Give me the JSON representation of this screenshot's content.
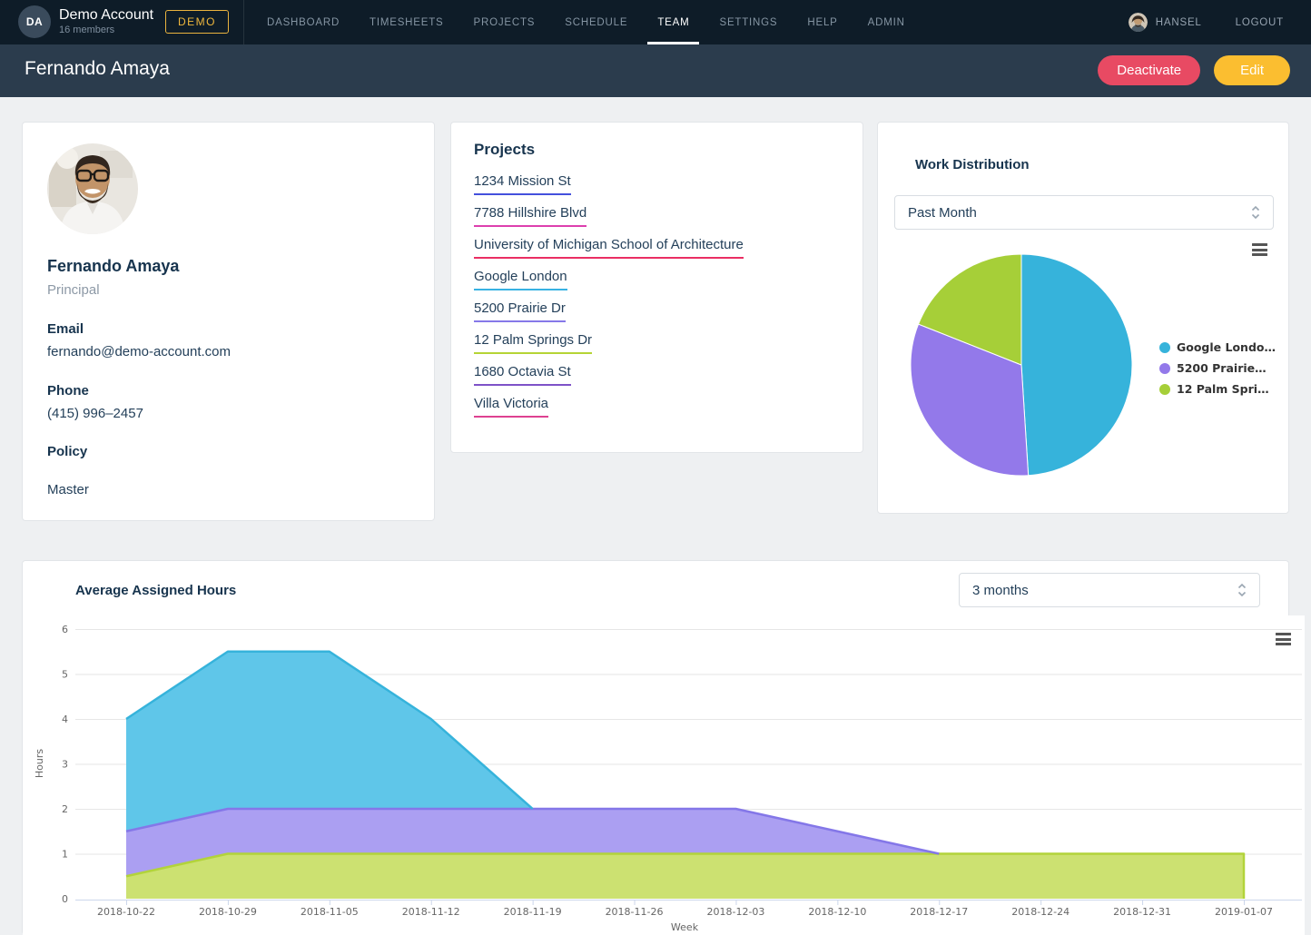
{
  "nav": {
    "account_initials": "DA",
    "account_name": "Demo Account",
    "account_members": "16 members",
    "badge": "DEMO",
    "items": [
      {
        "label": "DASHBOARD",
        "active": false
      },
      {
        "label": "TIMESHEETS",
        "active": false
      },
      {
        "label": "PROJECTS",
        "active": false
      },
      {
        "label": "SCHEDULE",
        "active": false
      },
      {
        "label": "TEAM",
        "active": true
      },
      {
        "label": "SETTINGS",
        "active": false
      },
      {
        "label": "HELP",
        "active": false
      },
      {
        "label": "ADMIN",
        "active": false
      }
    ],
    "user_name": "HANSEL",
    "logout_label": "LOGOUT"
  },
  "header": {
    "title": "Fernando Amaya",
    "deactivate_label": "Deactivate",
    "edit_label": "Edit"
  },
  "profile": {
    "name": "Fernando Amaya",
    "role": "Principal",
    "email_label": "Email",
    "email": "fernando@demo-account.com",
    "phone_label": "Phone",
    "phone": "(415) 996–2457",
    "policy_label": "Policy",
    "policy": "Master"
  },
  "projects": {
    "title": "Projects",
    "items": [
      {
        "label": "1234 Mission St",
        "underline_color": "#4450dd"
      },
      {
        "label": "7788 Hillshire Blvd",
        "underline_color": "#dd3fae"
      },
      {
        "label": "University of Michigan School of Architecture",
        "underline_color": "#ea2e63"
      },
      {
        "label": "Google London",
        "underline_color": "#38b2e3"
      },
      {
        "label": "5200 Prairie Dr",
        "underline_color": "#8678e9"
      },
      {
        "label": "12 Palm Springs Dr",
        "underline_color": "#b5d435"
      },
      {
        "label": "1680 Octavia St",
        "underline_color": "#7e52c8"
      },
      {
        "label": "Villa Victoria",
        "underline_color": "#de4191"
      }
    ]
  },
  "work_distribution": {
    "title": "Work Distribution",
    "period": "Past Month"
  },
  "assigned_hours": {
    "title": "Average Assigned Hours",
    "period": "3 months"
  },
  "icons": {
    "chart_menu": "hamburger-menu-icon",
    "select_chevron": "updown-chevron-icon"
  },
  "chart_data": [
    {
      "type": "pie",
      "title": "Work Distribution",
      "period": "Past Month",
      "legend_position": "right",
      "unit": "percent",
      "slices": [
        {
          "label": "Google Londo…",
          "value": 49,
          "color": "#36b3db"
        },
        {
          "label": "5200 Prairie…",
          "value": 32,
          "color": "#9379ea"
        },
        {
          "label": "12 Palm Spri…",
          "value": 19,
          "color": "#a6cf38"
        }
      ]
    },
    {
      "type": "area",
      "stacked": true,
      "title": "Average Assigned Hours",
      "period": "3 months",
      "xlabel": "Week",
      "ylabel": "Hours",
      "ylim": [
        0,
        6
      ],
      "yticks": [
        0,
        1,
        2,
        3,
        4,
        5,
        6
      ],
      "grid": true,
      "legend_position": "none",
      "categories": [
        "2018-10-22",
        "2018-10-29",
        "2018-11-05",
        "2018-11-12",
        "2018-11-19",
        "2018-11-26",
        "2018-12-03",
        "2018-12-10",
        "2018-12-17",
        "2018-12-24",
        "2018-12-31",
        "2019-01-07"
      ],
      "series": [
        {
          "name": "Google London",
          "color": "#36b3db",
          "fill": "#5fc6e9",
          "values": [
            2.5,
            3.5,
            3.5,
            2,
            0,
            0,
            0,
            0,
            0,
            0,
            0,
            0
          ]
        },
        {
          "name": "5200 Prairie Dr",
          "color": "#8477e8",
          "fill": "#ab9ff2",
          "values": [
            1,
            1,
            1,
            1,
            1,
            1,
            1,
            0.5,
            0,
            0,
            0,
            0
          ]
        },
        {
          "name": "12 Palm Springs Dr",
          "color": "#b2d33b",
          "fill": "#cce171",
          "values": [
            0.5,
            1,
            1,
            1,
            1,
            1,
            1,
            1,
            1,
            1,
            1,
            1
          ]
        }
      ]
    }
  ],
  "colors": {
    "topbar_bg": "#0e1c28",
    "subheader_bg": "#2b3c4d",
    "page_bg": "#eef0f2",
    "deactivate_button": "#e84a63",
    "edit_button": "#fbbe30",
    "badge_accent": "#efb73d",
    "heading_navy": "#17344e",
    "chart_text": "#666666",
    "legend_text": "#333333",
    "axis_line": "#ccd6eb",
    "gridline": "#e6e6e6"
  }
}
